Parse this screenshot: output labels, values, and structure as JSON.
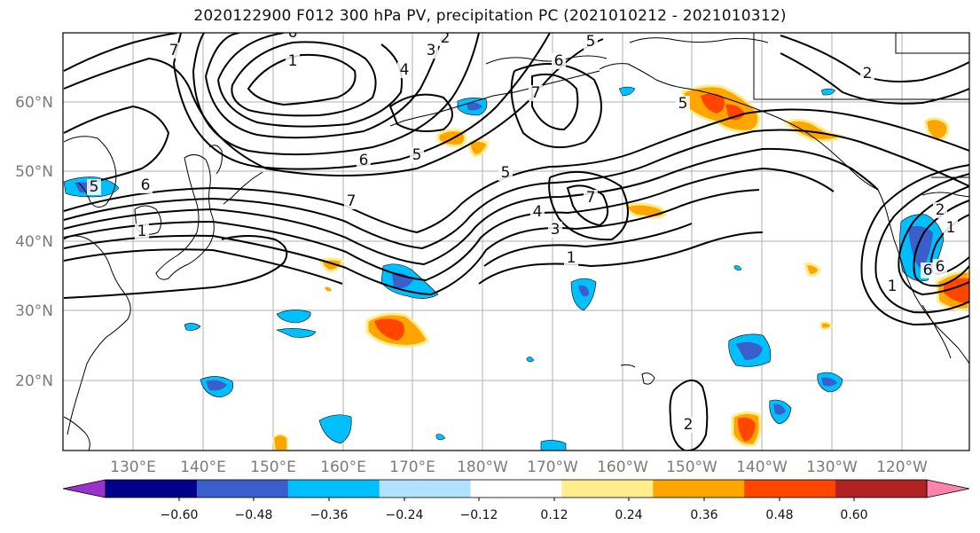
{
  "title": "2020122900 F012 300 hPa PV, precipitation PC (2021010212 - 2021010312)",
  "lat_labels": [
    "60°N",
    "50°N",
    "40°N",
    "30°N",
    "20°N"
  ],
  "lon_labels": [
    "130°E",
    "140°E",
    "150°E",
    "160°E",
    "170°E",
    "180°W",
    "170°W",
    "160°W",
    "150°W",
    "140°W",
    "130°W",
    "120°W"
  ],
  "colorbar": {
    "tick_labels": [
      "−0.60",
      "−0.48",
      "−0.36",
      "−0.24",
      "−0.12",
      "0.12",
      "0.24",
      "0.36",
      "0.48",
      "0.60"
    ],
    "colors": [
      "#9a32cd",
      "#00008b",
      "#3a5fcd",
      "#00bfff",
      "#b0e2ff",
      "#ffffff",
      "#ffec8b",
      "#ffa500",
      "#ff4500",
      "#b22222",
      "#ff82ab"
    ]
  },
  "contour_labels": [
    "6",
    "2",
    "1",
    "3",
    "4",
    "5",
    "6",
    "7",
    "6",
    "5",
    "5",
    "2",
    "7",
    "6",
    "1",
    "7",
    "4",
    "3",
    "1",
    "5",
    "5",
    "7",
    "2",
    "6",
    "1",
    "2",
    "1",
    "2",
    "6"
  ]
}
